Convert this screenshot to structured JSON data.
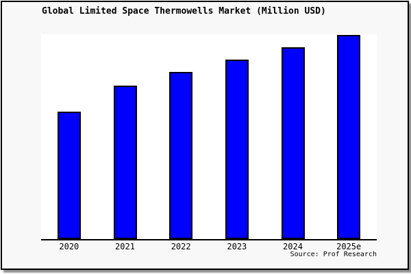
{
  "title": "Global Limited Space Thermowells Market (Million USD)",
  "source": "Source: Prof Research",
  "colors": {
    "bar_fill": "#0000ff",
    "bar_border": "#000000",
    "axis": "#000000",
    "frame_background": "#f8f8f8",
    "plot_background": "#ffffff",
    "frame_border": "#000000",
    "shadow": "#909090"
  },
  "chart_data": {
    "type": "bar",
    "title": "Global Limited Space Thermowells Market (Million USD)",
    "categories": [
      "2020",
      "2021",
      "2022",
      "2023",
      "2024",
      "2025e"
    ],
    "values": [
      62.4,
      75.2,
      81.9,
      87.9,
      94.0,
      100.0
    ],
    "value_scale": "relative index, 2025e = 100 (y-axis has no ticks or labels in chart)",
    "xlabel": "",
    "ylabel": "",
    "ylim": [
      0,
      100.5
    ],
    "grid": false,
    "legend": false,
    "bar_count": 6,
    "annotation": "Source: Prof Research"
  }
}
